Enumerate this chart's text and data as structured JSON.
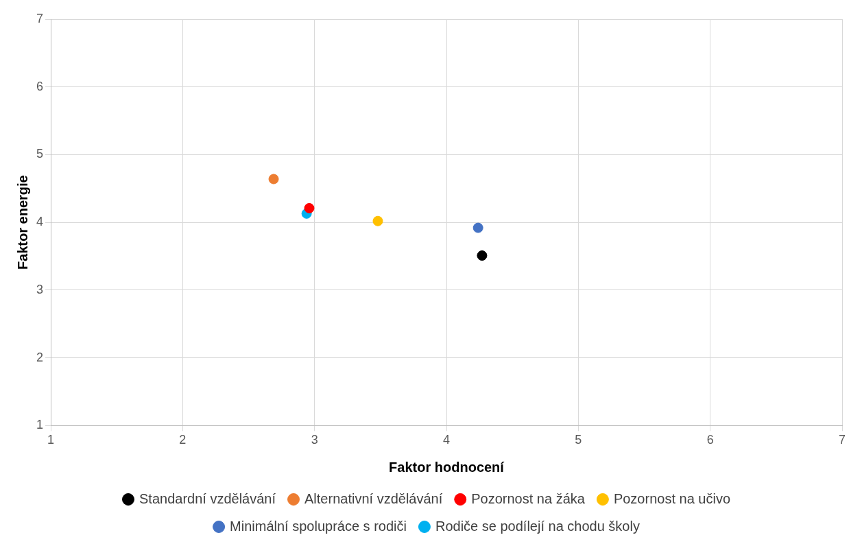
{
  "chart_data": {
    "type": "scatter",
    "xlabel": "Faktor hodnocení",
    "ylabel": "Faktor energie",
    "xlim": [
      1,
      7
    ],
    "xticks": [
      1,
      2,
      3,
      4,
      5,
      6,
      7
    ],
    "ylim": [
      1,
      7
    ],
    "yticks": [
      1,
      2,
      3,
      4,
      5,
      6,
      7
    ],
    "grid": true,
    "legend": "bottom",
    "marker": "circle",
    "series": [
      {
        "name": "Standardní vzdělávání",
        "color": "#000000",
        "x": [
          4.27
        ],
        "values": [
          3.51
        ]
      },
      {
        "name": "Alternativní vzdělávání",
        "color": "#ed7d31",
        "x": [
          2.69
        ],
        "values": [
          4.64
        ]
      },
      {
        "name": "Pozornost na žáka",
        "color": "#ff0000",
        "x": [
          2.96
        ],
        "values": [
          4.21
        ]
      },
      {
        "name": "Pozornost na učivo",
        "color": "#ffc000",
        "x": [
          3.48
        ],
        "values": [
          4.02
        ]
      },
      {
        "name": "Minimální spolupráce s rodiči",
        "color": "#4472c4",
        "x": [
          4.24
        ],
        "values": [
          3.92
        ]
      },
      {
        "name": "Rodiče se podílejí na chodu školy",
        "color": "#00b0f0",
        "x": [
          2.94
        ],
        "values": [
          4.13
        ]
      }
    ]
  }
}
